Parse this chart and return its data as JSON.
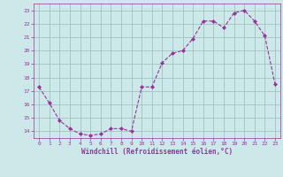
{
  "x": [
    0,
    1,
    2,
    3,
    4,
    5,
    6,
    7,
    8,
    9,
    10,
    11,
    12,
    13,
    14,
    15,
    16,
    17,
    18,
    19,
    20,
    21,
    22,
    23
  ],
  "y": [
    17.3,
    16.1,
    14.8,
    14.2,
    13.8,
    13.7,
    13.8,
    14.2,
    14.2,
    14.0,
    17.3,
    17.3,
    19.1,
    19.8,
    20.0,
    20.9,
    22.2,
    22.2,
    21.7,
    22.8,
    23.0,
    22.2,
    21.1,
    17.5
  ],
  "line_color": "#993399",
  "marker": "D",
  "marker_size": 2.0,
  "bg_color": "#cce8e8",
  "grid_color": "#99bbbb",
  "xlabel": "Windchill (Refroidissement éolien,°C)",
  "xlabel_color": "#993399",
  "tick_color": "#993399",
  "ylim": [
    13.5,
    23.5
  ],
  "yticks": [
    14,
    15,
    16,
    17,
    18,
    19,
    20,
    21,
    22,
    23
  ],
  "xticks": [
    0,
    1,
    2,
    3,
    4,
    5,
    6,
    7,
    8,
    9,
    10,
    11,
    12,
    13,
    14,
    15,
    16,
    17,
    18,
    19,
    20,
    21,
    22,
    23
  ]
}
